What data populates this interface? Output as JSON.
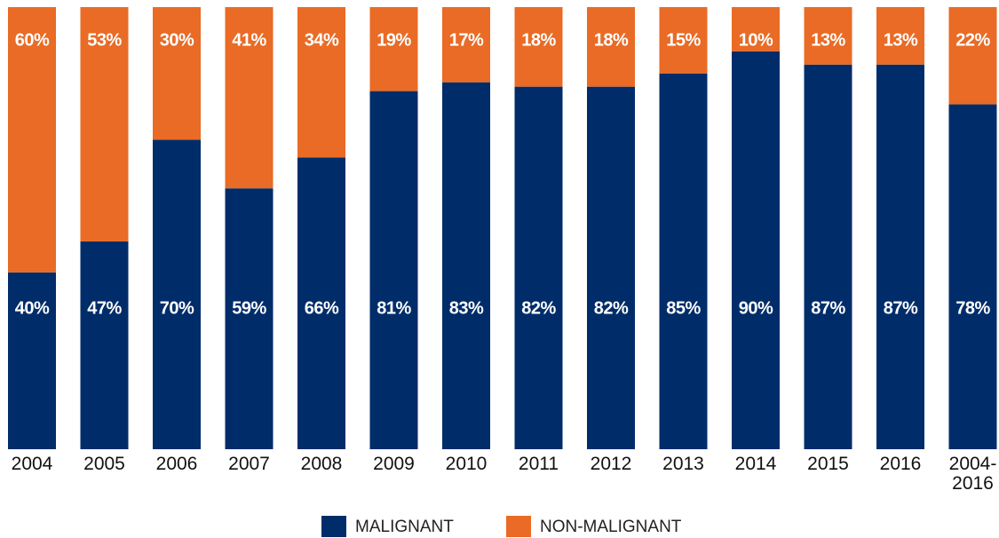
{
  "chart_data": {
    "type": "stacked_bar",
    "categories": [
      "2004",
      "2005",
      "2006",
      "2007",
      "2008",
      "2009",
      "2010",
      "2011",
      "2012",
      "2013",
      "2014",
      "2015",
      "2016",
      "2004-2016"
    ],
    "series": [
      {
        "name": "MALIGNANT",
        "color": "#002d6a",
        "values": [
          40,
          47,
          70,
          59,
          66,
          81,
          83,
          82,
          82,
          85,
          90,
          87,
          87,
          78
        ],
        "value_labels": [
          "40%",
          "47%",
          "70%",
          "59%",
          "66%",
          "81%",
          "83%",
          "82%",
          "82%",
          "85%",
          "90%",
          "87%",
          "87%",
          "78%"
        ]
      },
      {
        "name": "NON-MALIGNANT",
        "color": "#e96b25",
        "values": [
          60,
          53,
          30,
          41,
          34,
          19,
          17,
          18,
          18,
          15,
          10,
          13,
          13,
          22
        ],
        "value_labels": [
          "60%",
          "53%",
          "30%",
          "41%",
          "34%",
          "19%",
          "17%",
          "18%",
          "18%",
          "15%",
          "10%",
          "13%",
          "13%",
          "22%"
        ]
      }
    ],
    "ylim": [
      0,
      100
    ],
    "legend": "bottom"
  }
}
